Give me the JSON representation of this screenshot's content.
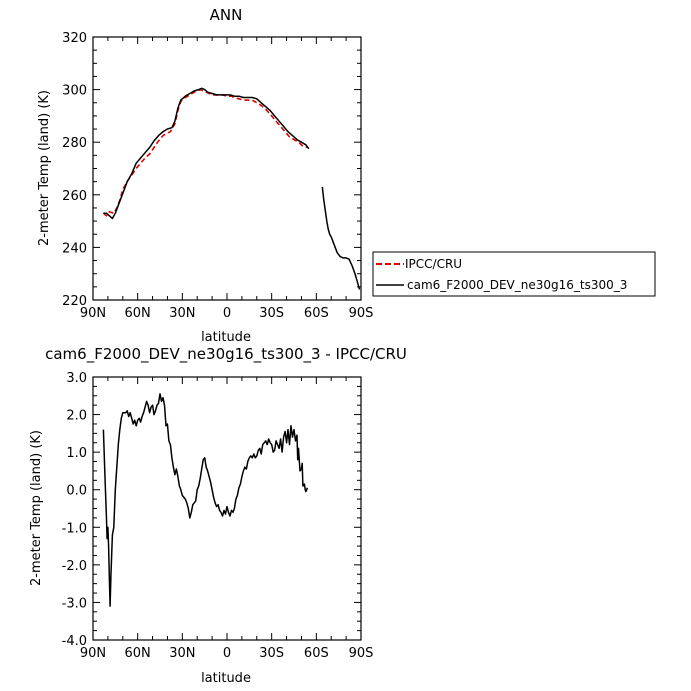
{
  "chart_data": [
    {
      "type": "line",
      "title": "ANN",
      "xlabel": "latitude",
      "ylabel": "2-meter Temp (land) (K)",
      "xlim": [
        90,
        -90
      ],
      "ylim": [
        220,
        320
      ],
      "x_ticks": [
        90,
        60,
        30,
        0,
        -30,
        -60,
        -90
      ],
      "x_tick_labels": [
        "90N",
        "60N",
        "30N",
        "0",
        "30S",
        "60S",
        "90S"
      ],
      "y_ticks": [
        220,
        240,
        260,
        280,
        300,
        320
      ],
      "y_tick_labels": [
        "220",
        "240",
        "260",
        "280",
        "300",
        "320"
      ],
      "legend_position": "right",
      "series": [
        {
          "name": "IPCC/CRU",
          "color": "#e00000",
          "dash": true,
          "points": [
            [
              83,
              253
            ],
            [
              81,
              252
            ],
            [
              79,
              253.5
            ],
            [
              76,
              253
            ],
            [
              74,
              255
            ],
            [
              72,
              258
            ],
            [
              70,
              262
            ],
            [
              67,
              265
            ],
            [
              64,
              267.5
            ],
            [
              61,
              270
            ],
            [
              58,
              272
            ],
            [
              55,
              274
            ],
            [
              52,
              275.5
            ],
            [
              49,
              278
            ],
            [
              46,
              280.5
            ],
            [
              43,
              282.5
            ],
            [
              40,
              283.5
            ],
            [
              38,
              284
            ],
            [
              35,
              287
            ],
            [
              33,
              292
            ],
            [
              31,
              295.5
            ],
            [
              28,
              297
            ],
            [
              25,
              298
            ],
            [
              22,
              299
            ],
            [
              20,
              299.5
            ],
            [
              18,
              300
            ],
            [
              16,
              299.5
            ],
            [
              14,
              299
            ],
            [
              12,
              298.5
            ],
            [
              9,
              298
            ],
            [
              6,
              298
            ],
            [
              3,
              298
            ],
            [
              0,
              297.5
            ],
            [
              -3,
              297.5
            ],
            [
              -5,
              297
            ],
            [
              -8,
              296.5
            ],
            [
              -11,
              296
            ],
            [
              -14,
              296
            ],
            [
              -17,
              296
            ],
            [
              -20,
              295
            ],
            [
              -23,
              294
            ],
            [
              -26,
              292.5
            ],
            [
              -30,
              290
            ],
            [
              -33,
              288
            ],
            [
              -36,
              286
            ],
            [
              -39,
              284
            ],
            [
              -42,
              282
            ],
            [
              -45,
              281
            ],
            [
              -48,
              280
            ],
            [
              -51,
              278.5
            ],
            [
              -54,
              278
            ]
          ]
        },
        {
          "name": "cam6_F2000_DEV_ne30g16_ts300_3",
          "color": "#000000",
          "dash": false,
          "segments": [
            [
              [
                83,
                253
              ],
              [
                81,
                253
              ],
              [
                79,
                252
              ],
              [
                77,
                251
              ],
              [
                75,
                253
              ],
              [
                73,
                256
              ],
              [
                71,
                259
              ],
              [
                69,
                262
              ],
              [
                67,
                265
              ],
              [
                64,
                268
              ],
              [
                61,
                272
              ],
              [
                58,
                274
              ],
              [
                55,
                276
              ],
              [
                52,
                278
              ],
              [
                49,
                280.5
              ],
              [
                46,
                282.5
              ],
              [
                43,
                284
              ],
              [
                40,
                285
              ],
              [
                37,
                285.5
              ],
              [
                35,
                288
              ],
              [
                33,
                293
              ],
              [
                31,
                296
              ],
              [
                28,
                297.5
              ],
              [
                25,
                298.5
              ],
              [
                22,
                299.5
              ],
              [
                19,
                300
              ],
              [
                17,
                300.5
              ],
              [
                15,
                300
              ],
              [
                13,
                299
              ],
              [
                10,
                298.5
              ],
              [
                7,
                298
              ],
              [
                4,
                298
              ],
              [
                1,
                298
              ],
              [
                -2,
                298
              ],
              [
                -5,
                297.5
              ],
              [
                -8,
                297.5
              ],
              [
                -11,
                297
              ],
              [
                -14,
                297
              ],
              [
                -17,
                297
              ],
              [
                -20,
                296.5
              ],
              [
                -23,
                295
              ],
              [
                -26,
                293.5
              ],
              [
                -29,
                292
              ],
              [
                -32,
                290
              ],
              [
                -35,
                288
              ],
              [
                -38,
                286
              ],
              [
                -41,
                284
              ],
              [
                -44,
                282.5
              ],
              [
                -47,
                281
              ],
              [
                -50,
                280
              ],
              [
                -53,
                279
              ],
              [
                -55,
                277.5
              ]
            ],
            [
              [
                -64,
                263
              ],
              [
                -65,
                258
              ],
              [
                -66,
                254
              ],
              [
                -67,
                250
              ],
              [
                -68,
                247
              ],
              [
                -69,
                245
              ],
              [
                -70,
                244
              ],
              [
                -72,
                241
              ],
              [
                -74,
                238
              ],
              [
                -76,
                236.5
              ],
              [
                -78,
                236
              ],
              [
                -80,
                236
              ],
              [
                -82,
                235.5
              ],
              [
                -84,
                233
              ],
              [
                -86,
                230
              ],
              [
                -88,
                226
              ],
              [
                -89,
                224
              ]
            ]
          ]
        }
      ]
    },
    {
      "type": "line",
      "title": "cam6_F2000_DEV_ne30g16_ts300_3 - IPCC/CRU",
      "xlabel": "latitude",
      "ylabel": "2-meter Temp (land) (K)",
      "xlim": [
        90,
        -90
      ],
      "ylim": [
        -4,
        3
      ],
      "x_ticks": [
        90,
        60,
        30,
        0,
        -30,
        -60,
        -90
      ],
      "x_tick_labels": [
        "90N",
        "60N",
        "30N",
        "0",
        "30S",
        "60S",
        "90S"
      ],
      "y_ticks": [
        -4,
        -3,
        -2,
        -1,
        0,
        1,
        2,
        3
      ],
      "y_tick_labels": [
        "-4.0",
        "-3.0",
        "-2.0",
        "-1.0",
        "0.0",
        "1.0",
        "2.0",
        "3.0"
      ],
      "series": [
        {
          "color": "#000000",
          "dash": false,
          "points": [
            [
              83,
              1.6
            ],
            [
              82,
              0.4
            ],
            [
              81,
              -0.7
            ],
            [
              80.5,
              -1.3
            ],
            [
              80,
              -1.0
            ],
            [
              79.5,
              -1.5
            ],
            [
              79,
              -2.4
            ],
            [
              78.5,
              -3.1
            ],
            [
              78,
              -2.3
            ],
            [
              77,
              -1.2
            ],
            [
              76,
              -1.0
            ],
            [
              75,
              0.0
            ],
            [
              74,
              0.6
            ],
            [
              73,
              1.2
            ],
            [
              72,
              1.6
            ],
            [
              71,
              1.9
            ],
            [
              70,
              2.05
            ],
            [
              68,
              2.05
            ],
            [
              67,
              2.1
            ],
            [
              66,
              1.95
            ],
            [
              65,
              2.05
            ],
            [
              64,
              1.9
            ],
            [
              63,
              1.75
            ],
            [
              62,
              1.85
            ],
            [
              61,
              1.7
            ],
            [
              60,
              1.85
            ],
            [
              59,
              1.9
            ],
            [
              58,
              1.8
            ],
            [
              57,
              1.95
            ],
            [
              56,
              2.05
            ],
            [
              55,
              2.2
            ],
            [
              54,
              2.35
            ],
            [
              53,
              2.25
            ],
            [
              52,
              2.05
            ],
            [
              51,
              2.2
            ],
            [
              50,
              2.25
            ],
            [
              49,
              2.0
            ],
            [
              48,
              2.1
            ],
            [
              47,
              2.25
            ],
            [
              46,
              2.3
            ],
            [
              45,
              2.55
            ],
            [
              44,
              2.35
            ],
            [
              43,
              2.45
            ],
            [
              42,
              2.25
            ],
            [
              41,
              1.7
            ],
            [
              40,
              1.75
            ],
            [
              39,
              1.3
            ],
            [
              38,
              1.2
            ],
            [
              37,
              0.85
            ],
            [
              36,
              0.6
            ],
            [
              35,
              0.4
            ],
            [
              34,
              0.55
            ],
            [
              33,
              0.35
            ],
            [
              32,
              0.1
            ],
            [
              31,
              0.0
            ],
            [
              30,
              -0.15
            ],
            [
              28,
              -0.25
            ],
            [
              27,
              -0.35
            ],
            [
              26,
              -0.5
            ],
            [
              25,
              -0.75
            ],
            [
              24,
              -0.6
            ],
            [
              23,
              -0.4
            ],
            [
              22,
              -0.35
            ],
            [
              21,
              -0.3
            ],
            [
              20,
              0.0
            ],
            [
              19,
              0.1
            ],
            [
              18,
              0.3
            ],
            [
              17,
              0.55
            ],
            [
              16,
              0.8
            ],
            [
              15,
              0.85
            ],
            [
              14,
              0.6
            ],
            [
              13,
              0.5
            ],
            [
              12,
              0.35
            ],
            [
              11,
              0.2
            ],
            [
              10,
              0.0
            ],
            [
              9,
              -0.2
            ],
            [
              8,
              -0.35
            ],
            [
              7,
              -0.45
            ],
            [
              6,
              -0.4
            ],
            [
              5,
              -0.55
            ],
            [
              4,
              -0.6
            ],
            [
              3,
              -0.7
            ],
            [
              2,
              -0.55
            ],
            [
              1,
              -0.65
            ],
            [
              0,
              -0.45
            ],
            [
              -1,
              -0.6
            ],
            [
              -2,
              -0.7
            ],
            [
              -3,
              -0.55
            ],
            [
              -4,
              -0.6
            ],
            [
              -5,
              -0.5
            ],
            [
              -6,
              -0.25
            ],
            [
              -7,
              -0.15
            ],
            [
              -8,
              0.05
            ],
            [
              -9,
              0.15
            ],
            [
              -10,
              0.35
            ],
            [
              -11,
              0.5
            ],
            [
              -12,
              0.6
            ],
            [
              -13,
              0.55
            ],
            [
              -14,
              0.75
            ],
            [
              -15,
              0.85
            ],
            [
              -16,
              0.9
            ],
            [
              -17,
              0.85
            ],
            [
              -18,
              0.95
            ],
            [
              -19,
              0.85
            ],
            [
              -20,
              0.9
            ],
            [
              -21,
              1.05
            ],
            [
              -22,
              1.1
            ],
            [
              -23,
              0.95
            ],
            [
              -24,
              1.2
            ],
            [
              -25,
              1.25
            ],
            [
              -26,
              1.3
            ],
            [
              -27,
              1.2
            ],
            [
              -28,
              1.35
            ],
            [
              -29,
              1.25
            ],
            [
              -30,
              1.2
            ],
            [
              -31,
              1.0
            ],
            [
              -32,
              1.05
            ],
            [
              -33,
              1.3
            ],
            [
              -34,
              1.2
            ],
            [
              -35,
              1.1
            ],
            [
              -36,
              1.35
            ],
            [
              -37,
              1.0
            ],
            [
              -38,
              1.4
            ],
            [
              -39,
              1.55
            ],
            [
              -40,
              1.25
            ],
            [
              -41,
              1.6
            ],
            [
              -42,
              1.2
            ],
            [
              -43,
              1.7
            ],
            [
              -44,
              1.4
            ],
            [
              -45,
              1.6
            ],
            [
              -46,
              1.3
            ],
            [
              -47,
              1.45
            ],
            [
              -47.5,
              0.8
            ],
            [
              -48,
              1.1
            ],
            [
              -49,
              0.5
            ],
            [
              -50,
              0.55
            ],
            [
              -50.5,
              0.7
            ],
            [
              -51,
              0.1
            ],
            [
              -52,
              0.15
            ],
            [
              -52.5,
              0.0
            ],
            [
              -53,
              -0.05
            ],
            [
              -54,
              0.05
            ]
          ]
        }
      ]
    }
  ]
}
